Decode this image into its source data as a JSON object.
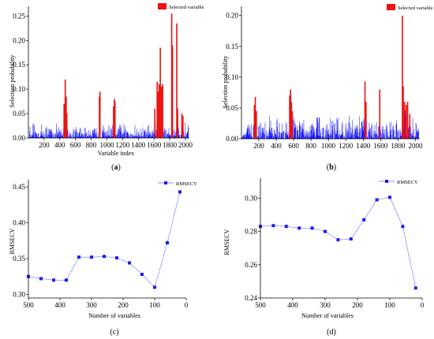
{
  "colors": {
    "variable_bars": "#1a1aff",
    "selected": "#ee1111",
    "rmsecv": "#1a1aff",
    "axis": "#000000"
  },
  "panels": [
    {
      "label": "a",
      "legend": "Selected variable"
    },
    {
      "label": "b",
      "legend": "Selected variable"
    },
    {
      "label": "c",
      "legend": "RMSECV"
    },
    {
      "label": "d",
      "legend": "RMSECV"
    }
  ],
  "chart_data": [
    {
      "type": "bar",
      "panel": "a",
      "xlabel": "Variable index",
      "ylabel": "Selection probability",
      "xlim": [
        1,
        2050
      ],
      "ylim": [
        0,
        0.27
      ],
      "xticks": [
        "200",
        "400",
        "600",
        "800",
        "1000",
        "1200",
        "1400",
        "1600",
        "1800",
        "2000"
      ],
      "yticks": [
        "0.00",
        "0.05",
        "0.10",
        "0.15",
        "0.20",
        "0.25"
      ],
      "series": [
        {
          "name": "Selected variable",
          "x": [
            455,
            470,
            482,
            490,
            905,
            912,
            1085,
            1095,
            1103,
            1610,
            1640,
            1655,
            1665,
            1680,
            1695,
            1710,
            1825,
            1835,
            1890,
            1900,
            1955,
            1968
          ],
          "values": [
            0.07,
            0.12,
            0.085,
            0.05,
            0.085,
            0.095,
            0.065,
            0.08,
            0.075,
            0.06,
            0.115,
            0.095,
            0.11,
            0.185,
            0.105,
            0.11,
            0.255,
            0.19,
            0.235,
            0.06,
            0.05,
            0.045
          ]
        }
      ]
    },
    {
      "type": "bar",
      "panel": "b",
      "xlabel": "",
      "ylabel": "Selection probability",
      "xlim": [
        1,
        2050
      ],
      "ylim": [
        0,
        0.215
      ],
      "xticks": [
        "200",
        "400",
        "600",
        "800",
        "1000",
        "1200",
        "1400",
        "1600",
        "1800",
        "2000"
      ],
      "yticks": [
        "0.00",
        "0.05",
        "0.10",
        "0.15",
        "0.20"
      ],
      "series": [
        {
          "name": "Selected variable",
          "x": [
            150,
            160,
            172,
            555,
            565,
            575,
            585,
            1420,
            1432,
            1590,
            1850,
            1860,
            1875,
            1895,
            1910,
            1935
          ],
          "values": [
            0.055,
            0.068,
            0.045,
            0.07,
            0.08,
            0.06,
            0.045,
            0.093,
            0.06,
            0.08,
            0.2,
            0.085,
            0.06,
            0.055,
            0.06,
            0.04
          ]
        }
      ]
    },
    {
      "type": "line",
      "panel": "c",
      "xlabel": "Number of variables",
      "ylabel": "RMSECV",
      "xlim": [
        500,
        0
      ],
      "ylim": [
        0.295,
        0.46
      ],
      "xticks": [
        "500",
        "400",
        "300",
        "200",
        "100",
        "0"
      ],
      "yticks": [
        "0.30",
        "0.35",
        "0.40",
        "0.45"
      ],
      "series": [
        {
          "name": "RMSECV",
          "x": [
            500,
            460,
            420,
            380,
            340,
            300,
            260,
            220,
            180,
            140,
            100,
            60,
            20
          ],
          "values": [
            0.325,
            0.322,
            0.32,
            0.32,
            0.352,
            0.352,
            0.353,
            0.351,
            0.344,
            0.328,
            0.31,
            0.372,
            0.443
          ]
        }
      ]
    },
    {
      "type": "line",
      "panel": "d",
      "xlabel": "Number of variables",
      "ylabel": "RMSECV",
      "xlim": [
        500,
        0
      ],
      "ylim": [
        0.24,
        0.312
      ],
      "xticks": [
        "500",
        "400",
        "300",
        "200",
        "100",
        "0"
      ],
      "yticks": [
        "0.24",
        "0.26",
        "0.28",
        "0.30"
      ],
      "series": [
        {
          "name": "RMSECV",
          "x": [
            500,
            460,
            420,
            380,
            340,
            300,
            260,
            220,
            180,
            140,
            100,
            60,
            20
          ],
          "values": [
            0.283,
            0.2835,
            0.283,
            0.282,
            0.282,
            0.28,
            0.275,
            0.2755,
            0.287,
            0.299,
            0.3005,
            0.283,
            0.246
          ]
        }
      ]
    }
  ]
}
